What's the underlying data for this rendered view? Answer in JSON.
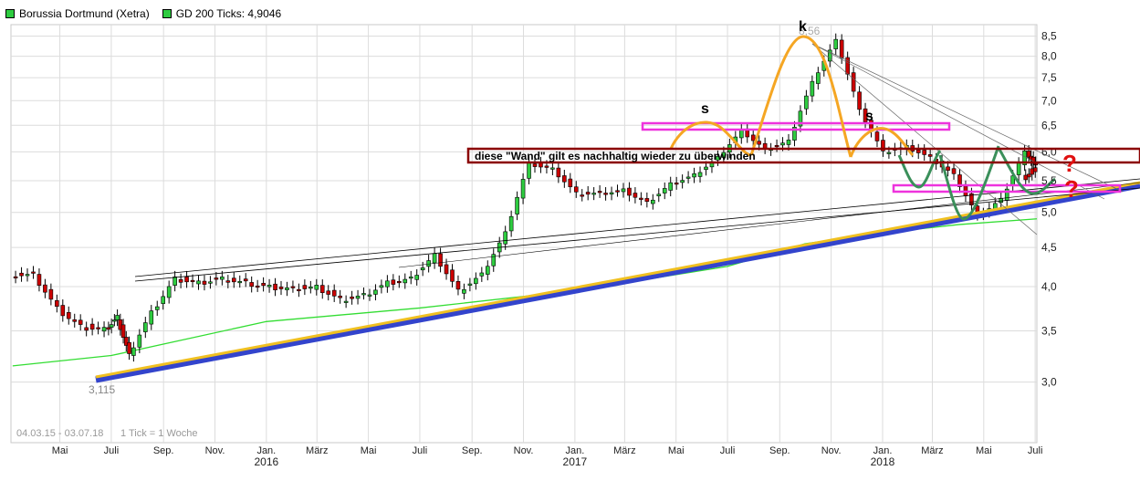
{
  "legend": {
    "items": [
      {
        "label": "Borussia Dortmund (Xetra)",
        "color": "#2ecc40"
      },
      {
        "label": "GD 200 Ticks: 4,9046",
        "color": "#2ecc40"
      }
    ]
  },
  "footer": {
    "date_range": "04.03.15 - 03.07.18",
    "tick_info": "1 Tick = 1 Woche"
  },
  "annotations": {
    "low_label": "3,115",
    "high_label": "8,56",
    "letter_s": "s",
    "letter_k": "k",
    "question": "?",
    "wall_text": "diese \"Wand\" gilt es nachhaltig wieder zu überwinden"
  },
  "colors": {
    "up_candle": "#2ecc40",
    "down_candle": "#cc0000",
    "grid": "#dcdcdc",
    "ma200": "#33dd33",
    "trend_outer": "#3344cc",
    "trend_inner": "#f0c020",
    "shoulder_pattern": "#f5a623",
    "w_pattern": "#3a8f5a",
    "zone_magenta": "#ee33dd",
    "wall_box": "#8b0000"
  },
  "chart_data": {
    "type": "candlestick",
    "title": "",
    "yaxis": {
      "scale": "log",
      "range": [
        2.5,
        8.8
      ],
      "ticks": [
        "3,0",
        "3,5",
        "4,0",
        "4,5",
        "5,0",
        "5,5",
        "6,0",
        "6,5",
        "7,0",
        "7,5",
        "8,0",
        "8,5"
      ],
      "tick_values": [
        3.0,
        3.5,
        4.0,
        4.5,
        5.0,
        5.5,
        6.0,
        6.5,
        7.0,
        7.5,
        8.0,
        8.5
      ],
      "position": "right"
    },
    "xaxis": {
      "start": "2015-03-04",
      "end": "2018-07-03",
      "month_ticks": [
        {
          "label": "Mai",
          "date": "2015-05-01"
        },
        {
          "label": "Juli",
          "date": "2015-07-01"
        },
        {
          "label": "Sep.",
          "date": "2015-09-01"
        },
        {
          "label": "Nov.",
          "date": "2015-11-01"
        },
        {
          "label": "Jan.",
          "date": "2016-01-01"
        },
        {
          "label": "März",
          "date": "2016-03-01"
        },
        {
          "label": "Mai",
          "date": "2016-05-01"
        },
        {
          "label": "Juli",
          "date": "2016-07-01"
        },
        {
          "label": "Sep.",
          "date": "2016-09-01"
        },
        {
          "label": "Nov.",
          "date": "2016-11-01"
        },
        {
          "label": "Jan.",
          "date": "2017-01-01"
        },
        {
          "label": "März",
          "date": "2017-03-01"
        },
        {
          "label": "Mai",
          "date": "2017-05-01"
        },
        {
          "label": "Juli",
          "date": "2017-07-01"
        },
        {
          "label": "Sep.",
          "date": "2017-09-01"
        },
        {
          "label": "Nov.",
          "date": "2017-11-01"
        },
        {
          "label": "Jan.",
          "date": "2018-01-01"
        },
        {
          "label": "März",
          "date": "2018-03-01"
        },
        {
          "label": "Mai",
          "date": "2018-05-01"
        },
        {
          "label": "Juli",
          "date": "2018-07-01"
        }
      ],
      "year_ticks": [
        {
          "label": "2016",
          "date": "2016-01-01"
        },
        {
          "label": "2017",
          "date": "2017-01-01"
        },
        {
          "label": "2018",
          "date": "2018-01-01"
        }
      ]
    },
    "grid": true,
    "series": [
      {
        "name": "Borussia Dortmund (Xetra)",
        "kind": "ohlc_weekly_close",
        "dates": [
          "2015-03-06",
          "2015-04-03",
          "2015-05-01",
          "2015-05-29",
          "2015-06-26",
          "2015-07-10",
          "2015-07-24",
          "2015-08-21",
          "2015-09-18",
          "2015-10-16",
          "2015-11-13",
          "2015-12-11",
          "2016-01-08",
          "2016-02-05",
          "2016-03-04",
          "2016-04-01",
          "2016-04-29",
          "2016-05-27",
          "2016-06-24",
          "2016-07-22",
          "2016-08-19",
          "2016-09-16",
          "2016-10-14",
          "2016-11-11",
          "2016-12-09",
          "2017-01-06",
          "2017-02-03",
          "2017-03-03",
          "2017-03-31",
          "2017-04-28",
          "2017-05-26",
          "2017-06-23",
          "2017-07-21",
          "2017-08-18",
          "2017-09-15",
          "2017-10-13",
          "2017-11-10",
          "2017-12-08",
          "2018-01-05",
          "2018-02-02",
          "2018-03-02",
          "2018-03-30",
          "2018-04-27",
          "2018-05-25",
          "2018-06-22",
          "2018-07-03"
        ],
        "values": [
          4.15,
          3.75,
          3.55,
          3.52,
          3.65,
          3.25,
          3.7,
          4.1,
          4.05,
          4.1,
          4.05,
          4.0,
          3.98,
          4.0,
          3.85,
          3.9,
          4.05,
          4.1,
          4.4,
          3.95,
          4.15,
          4.7,
          5.8,
          5.7,
          5.3,
          5.3,
          5.35,
          5.15,
          5.45,
          5.6,
          5.9,
          6.4,
          6.05,
          6.2,
          7.4,
          8.4,
          6.8,
          6.0,
          6.1,
          5.9,
          5.6,
          4.95,
          5.2,
          6.0,
          5.75,
          5.5
        ]
      },
      {
        "name": "GD 200 Ticks: 4,9046",
        "kind": "moving_average",
        "dates": [
          "2015-03-06",
          "2015-07-01",
          "2016-01-01",
          "2016-07-01",
          "2017-01-01",
          "2017-07-01",
          "2017-10-01",
          "2018-01-01",
          "2018-04-01",
          "2018-07-03"
        ],
        "values": [
          3.15,
          3.25,
          3.6,
          3.75,
          3.95,
          4.25,
          4.55,
          4.7,
          4.82,
          4.9046
        ]
      }
    ]
  }
}
